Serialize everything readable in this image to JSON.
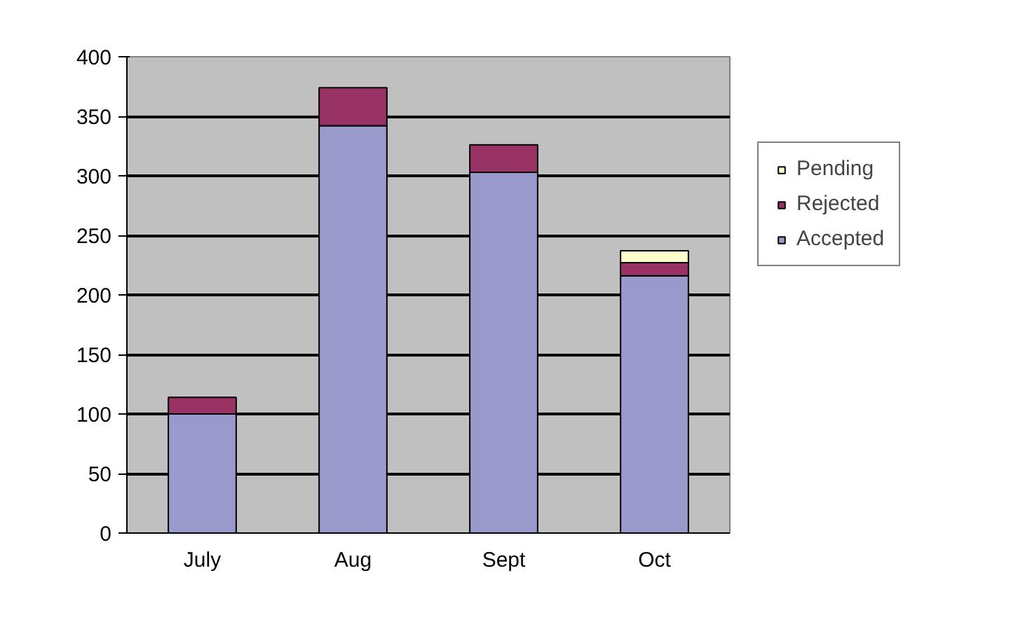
{
  "chart_data": {
    "type": "bar",
    "stacked": true,
    "categories": [
      "July",
      "Aug",
      "Sept",
      "Oct"
    ],
    "series": [
      {
        "name": "Accepted",
        "color": "#9999cc",
        "values": [
          100,
          342,
          303,
          216
        ]
      },
      {
        "name": "Rejected",
        "color": "#993366",
        "values": [
          14,
          32,
          23,
          11
        ]
      },
      {
        "name": "Pending",
        "color": "#ffffcc",
        "values": [
          null,
          null,
          null,
          10
        ]
      }
    ],
    "ylim": [
      0,
      400
    ],
    "yticks": [
      0,
      50,
      100,
      150,
      200,
      250,
      300,
      350,
      400
    ],
    "grid": "y",
    "legend": "right"
  }
}
